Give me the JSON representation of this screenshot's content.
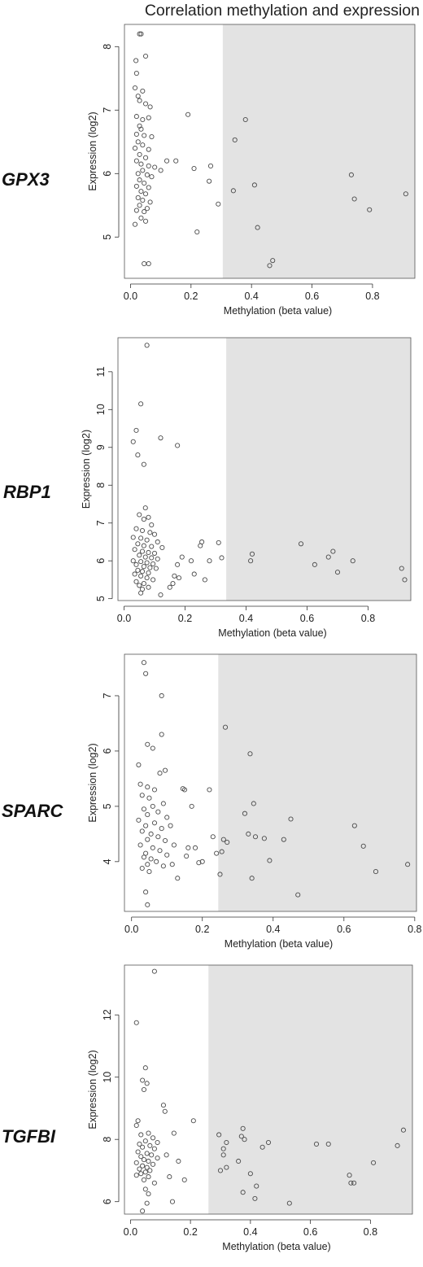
{
  "figure": {
    "title": "Correlation methylation and expression"
  },
  "chart_data": [
    {
      "type": "scatter",
      "gene": "GPX3",
      "xlabel": "Methylation (beta value)",
      "ylabel": "Expression (log2)",
      "xlim": [
        -0.02,
        0.94
      ],
      "ylim": [
        4.35,
        8.35
      ],
      "xticks": [
        0,
        0.2,
        0.4,
        0.6,
        0.8
      ],
      "xtick_labels": [
        "0.0",
        "0.2",
        "0.4",
        "0.6",
        "0.8"
      ],
      "yticks": [
        5,
        6,
        7,
        8
      ],
      "ytick_labels": [
        "5",
        "6",
        "7",
        "8"
      ],
      "shaded_from_x": 0.305,
      "points": [
        [
          0.03,
          8.2
        ],
        [
          0.035,
          8.2
        ],
        [
          0.018,
          7.78
        ],
        [
          0.05,
          7.85
        ],
        [
          0.02,
          7.58
        ],
        [
          0.015,
          7.35
        ],
        [
          0.025,
          7.22
        ],
        [
          0.04,
          7.3
        ],
        [
          0.03,
          7.15
        ],
        [
          0.05,
          7.1
        ],
        [
          0.065,
          7.05
        ],
        [
          0.02,
          6.9
        ],
        [
          0.04,
          6.85
        ],
        [
          0.06,
          6.88
        ],
        [
          0.03,
          6.75
        ],
        [
          0.035,
          6.7
        ],
        [
          0.02,
          6.62
        ],
        [
          0.045,
          6.6
        ],
        [
          0.07,
          6.58
        ],
        [
          0.025,
          6.5
        ],
        [
          0.04,
          6.45
        ],
        [
          0.015,
          6.4
        ],
        [
          0.06,
          6.38
        ],
        [
          0.03,
          6.3
        ],
        [
          0.05,
          6.25
        ],
        [
          0.02,
          6.2
        ],
        [
          0.035,
          6.15
        ],
        [
          0.06,
          6.12
        ],
        [
          0.08,
          6.1
        ],
        [
          0.04,
          6.05
        ],
        [
          0.025,
          6.0
        ],
        [
          0.055,
          5.98
        ],
        [
          0.07,
          5.95
        ],
        [
          0.03,
          5.9
        ],
        [
          0.045,
          5.85
        ],
        [
          0.02,
          5.8
        ],
        [
          0.06,
          5.78
        ],
        [
          0.035,
          5.72
        ],
        [
          0.05,
          5.68
        ],
        [
          0.025,
          5.62
        ],
        [
          0.04,
          5.58
        ],
        [
          0.065,
          5.55
        ],
        [
          0.03,
          5.5
        ],
        [
          0.055,
          5.45
        ],
        [
          0.02,
          5.42
        ],
        [
          0.045,
          5.4
        ],
        [
          0.035,
          5.3
        ],
        [
          0.05,
          5.25
        ],
        [
          0.015,
          5.2
        ],
        [
          0.045,
          4.58
        ],
        [
          0.06,
          4.58
        ],
        [
          0.1,
          6.05
        ],
        [
          0.12,
          6.2
        ],
        [
          0.15,
          6.2
        ],
        [
          0.19,
          6.93
        ],
        [
          0.21,
          6.08
        ],
        [
          0.22,
          5.08
        ],
        [
          0.26,
          5.88
        ],
        [
          0.265,
          6.12
        ],
        [
          0.29,
          5.52
        ],
        [
          0.34,
          5.73
        ],
        [
          0.345,
          6.53
        ],
        [
          0.38,
          6.85
        ],
        [
          0.41,
          5.82
        ],
        [
          0.42,
          5.15
        ],
        [
          0.46,
          4.55
        ],
        [
          0.47,
          4.63
        ],
        [
          0.73,
          5.98
        ],
        [
          0.74,
          5.6
        ],
        [
          0.79,
          5.43
        ],
        [
          0.91,
          5.68
        ]
      ]
    },
    {
      "type": "scatter",
      "gene": "RBP1",
      "xlabel": "Methylation (beta value)",
      "ylabel": "Expression (log2)",
      "xlim": [
        -0.02,
        0.94
      ],
      "ylim": [
        4.95,
        11.9
      ],
      "xticks": [
        0,
        0.2,
        0.4,
        0.6,
        0.8
      ],
      "xtick_labels": [
        "0.0",
        "0.2",
        "0.4",
        "0.6",
        "0.8"
      ],
      "yticks": [
        5,
        6,
        7,
        8,
        9,
        10,
        11
      ],
      "ytick_labels": [
        "5",
        "6",
        "7",
        "8",
        "9",
        "10",
        "11"
      ],
      "shaded_from_x": 0.335,
      "points": [
        [
          0.075,
          11.7
        ],
        [
          0.055,
          10.15
        ],
        [
          0.04,
          9.45
        ],
        [
          0.12,
          9.25
        ],
        [
          0.03,
          9.15
        ],
        [
          0.175,
          9.05
        ],
        [
          0.045,
          8.8
        ],
        [
          0.065,
          8.55
        ],
        [
          0.07,
          7.4
        ],
        [
          0.05,
          7.22
        ],
        [
          0.08,
          7.15
        ],
        [
          0.065,
          7.1
        ],
        [
          0.09,
          6.95
        ],
        [
          0.04,
          6.85
        ],
        [
          0.06,
          6.8
        ],
        [
          0.085,
          6.75
        ],
        [
          0.1,
          6.7
        ],
        [
          0.03,
          6.62
        ],
        [
          0.055,
          6.6
        ],
        [
          0.075,
          6.55
        ],
        [
          0.11,
          6.5
        ],
        [
          0.045,
          6.45
        ],
        [
          0.065,
          6.4
        ],
        [
          0.09,
          6.38
        ],
        [
          0.125,
          6.35
        ],
        [
          0.035,
          6.3
        ],
        [
          0.06,
          6.25
        ],
        [
          0.08,
          6.22
        ],
        [
          0.1,
          6.2
        ],
        [
          0.05,
          6.15
        ],
        [
          0.07,
          6.1
        ],
        [
          0.09,
          6.08
        ],
        [
          0.11,
          6.05
        ],
        [
          0.03,
          6.0
        ],
        [
          0.055,
          5.98
        ],
        [
          0.075,
          5.95
        ],
        [
          0.095,
          5.92
        ],
        [
          0.04,
          5.9
        ],
        [
          0.065,
          5.85
        ],
        [
          0.085,
          5.82
        ],
        [
          0.105,
          5.8
        ],
        [
          0.045,
          5.75
        ],
        [
          0.06,
          5.72
        ],
        [
          0.08,
          5.68
        ],
        [
          0.035,
          5.65
        ],
        [
          0.055,
          5.6
        ],
        [
          0.075,
          5.55
        ],
        [
          0.095,
          5.5
        ],
        [
          0.04,
          5.45
        ],
        [
          0.065,
          5.4
        ],
        [
          0.05,
          5.35
        ],
        [
          0.08,
          5.3
        ],
        [
          0.06,
          5.25
        ],
        [
          0.12,
          5.1
        ],
        [
          0.055,
          5.15
        ],
        [
          0.15,
          5.3
        ],
        [
          0.16,
          5.4
        ],
        [
          0.165,
          5.6
        ],
        [
          0.18,
          5.55
        ],
        [
          0.175,
          5.9
        ],
        [
          0.19,
          6.1
        ],
        [
          0.22,
          6.0
        ],
        [
          0.23,
          5.65
        ],
        [
          0.25,
          6.4
        ],
        [
          0.255,
          6.5
        ],
        [
          0.265,
          5.5
        ],
        [
          0.28,
          6.0
        ],
        [
          0.31,
          6.48
        ],
        [
          0.32,
          6.08
        ],
        [
          0.415,
          6.0
        ],
        [
          0.42,
          6.18
        ],
        [
          0.58,
          6.45
        ],
        [
          0.625,
          5.9
        ],
        [
          0.67,
          6.1
        ],
        [
          0.685,
          6.25
        ],
        [
          0.7,
          5.7
        ],
        [
          0.75,
          6.0
        ],
        [
          0.91,
          5.8
        ],
        [
          0.92,
          5.5
        ]
      ]
    },
    {
      "type": "scatter",
      "gene": "SPARC",
      "xlabel": "Methylation (beta value)",
      "ylabel": "Expression (log2)",
      "xlim": [
        -0.02,
        0.805
      ],
      "ylim": [
        3.1,
        7.75
      ],
      "xticks": [
        0,
        0.2,
        0.4,
        0.6,
        0.8
      ],
      "xtick_labels": [
        "0.0",
        "0.2",
        "0.4",
        "0.6",
        "0.8"
      ],
      "yticks": [
        4,
        5,
        6,
        7
      ],
      "ytick_labels": [
        "4",
        "5",
        "6",
        "7"
      ],
      "shaded_from_x": 0.245,
      "points": [
        [
          0.035,
          7.6
        ],
        [
          0.04,
          7.4
        ],
        [
          0.085,
          7.0
        ],
        [
          0.085,
          6.3
        ],
        [
          0.045,
          6.12
        ],
        [
          0.06,
          6.05
        ],
        [
          0.095,
          5.65
        ],
        [
          0.02,
          5.75
        ],
        [
          0.08,
          5.6
        ],
        [
          0.025,
          5.4
        ],
        [
          0.045,
          5.35
        ],
        [
          0.065,
          5.3
        ],
        [
          0.03,
          5.2
        ],
        [
          0.05,
          5.15
        ],
        [
          0.09,
          5.05
        ],
        [
          0.06,
          5.0
        ],
        [
          0.035,
          4.95
        ],
        [
          0.075,
          4.9
        ],
        [
          0.045,
          4.85
        ],
        [
          0.1,
          4.8
        ],
        [
          0.02,
          4.75
        ],
        [
          0.065,
          4.7
        ],
        [
          0.04,
          4.65
        ],
        [
          0.085,
          4.6
        ],
        [
          0.03,
          4.55
        ],
        [
          0.055,
          4.5
        ],
        [
          0.075,
          4.45
        ],
        [
          0.045,
          4.4
        ],
        [
          0.095,
          4.38
        ],
        [
          0.025,
          4.3
        ],
        [
          0.06,
          4.25
        ],
        [
          0.08,
          4.2
        ],
        [
          0.04,
          4.15
        ],
        [
          0.1,
          4.12
        ],
        [
          0.035,
          4.08
        ],
        [
          0.055,
          4.05
        ],
        [
          0.07,
          4.0
        ],
        [
          0.045,
          3.95
        ],
        [
          0.09,
          3.92
        ],
        [
          0.03,
          3.88
        ],
        [
          0.05,
          3.82
        ],
        [
          0.04,
          3.45
        ],
        [
          0.045,
          3.22
        ],
        [
          0.11,
          4.65
        ],
        [
          0.12,
          4.3
        ],
        [
          0.115,
          3.95
        ],
        [
          0.13,
          3.7
        ],
        [
          0.145,
          5.32
        ],
        [
          0.15,
          5.3
        ],
        [
          0.155,
          4.1
        ],
        [
          0.16,
          4.25
        ],
        [
          0.17,
          5.0
        ],
        [
          0.18,
          4.25
        ],
        [
          0.19,
          3.98
        ],
        [
          0.2,
          4.0
        ],
        [
          0.22,
          5.3
        ],
        [
          0.23,
          4.45
        ],
        [
          0.24,
          4.15
        ],
        [
          0.25,
          3.77
        ],
        [
          0.255,
          4.18
        ],
        [
          0.26,
          4.4
        ],
        [
          0.265,
          6.43
        ],
        [
          0.27,
          4.35
        ],
        [
          0.32,
          4.87
        ],
        [
          0.33,
          4.5
        ],
        [
          0.335,
          5.95
        ],
        [
          0.34,
          3.7
        ],
        [
          0.345,
          5.05
        ],
        [
          0.35,
          4.45
        ],
        [
          0.375,
          4.42
        ],
        [
          0.39,
          4.02
        ],
        [
          0.43,
          4.4
        ],
        [
          0.45,
          4.77
        ],
        [
          0.47,
          3.4
        ],
        [
          0.63,
          4.65
        ],
        [
          0.655,
          4.28
        ],
        [
          0.69,
          3.82
        ],
        [
          0.78,
          3.95
        ]
      ]
    },
    {
      "type": "scatter",
      "gene": "TGFBI",
      "xlabel": "Methylation (beta value)",
      "ylabel": "Expression (log2)",
      "xlim": [
        -0.02,
        0.94
      ],
      "ylim": [
        5.6,
        13.6
      ],
      "xticks": [
        0,
        0.2,
        0.4,
        0.6,
        0.8
      ],
      "xtick_labels": [
        "0.0",
        "0.2",
        "0.4",
        "0.6",
        "0.8"
      ],
      "yticks": [
        6,
        8,
        10,
        12
      ],
      "ytick_labels": [
        "6",
        "8",
        "10",
        "12"
      ],
      "shaded_from_x": 0.26,
      "points": [
        [
          0.08,
          13.4
        ],
        [
          0.02,
          11.75
        ],
        [
          0.05,
          10.3
        ],
        [
          0.04,
          9.9
        ],
        [
          0.055,
          9.8
        ],
        [
          0.045,
          9.6
        ],
        [
          0.025,
          8.6
        ],
        [
          0.02,
          8.45
        ],
        [
          0.06,
          8.2
        ],
        [
          0.035,
          8.15
        ],
        [
          0.075,
          8.05
        ],
        [
          0.05,
          7.95
        ],
        [
          0.09,
          7.9
        ],
        [
          0.03,
          7.85
        ],
        [
          0.065,
          7.8
        ],
        [
          0.04,
          7.75
        ],
        [
          0.08,
          7.7
        ],
        [
          0.025,
          7.6
        ],
        [
          0.055,
          7.55
        ],
        [
          0.07,
          7.5
        ],
        [
          0.035,
          7.45
        ],
        [
          0.09,
          7.4
        ],
        [
          0.045,
          7.35
        ],
        [
          0.06,
          7.3
        ],
        [
          0.02,
          7.25
        ],
        [
          0.075,
          7.2
        ],
        [
          0.04,
          7.15
        ],
        [
          0.055,
          7.1
        ],
        [
          0.03,
          7.05
        ],
        [
          0.065,
          7.0
        ],
        [
          0.05,
          6.95
        ],
        [
          0.035,
          6.9
        ],
        [
          0.02,
          6.85
        ],
        [
          0.06,
          6.8
        ],
        [
          0.045,
          6.7
        ],
        [
          0.08,
          6.6
        ],
        [
          0.05,
          6.4
        ],
        [
          0.06,
          6.25
        ],
        [
          0.04,
          5.7
        ],
        [
          0.055,
          5.95
        ],
        [
          0.11,
          9.1
        ],
        [
          0.115,
          8.9
        ],
        [
          0.12,
          7.5
        ],
        [
          0.13,
          6.8
        ],
        [
          0.14,
          6.0
        ],
        [
          0.145,
          8.2
        ],
        [
          0.16,
          7.3
        ],
        [
          0.18,
          6.7
        ],
        [
          0.21,
          8.6
        ],
        [
          0.295,
          8.15
        ],
        [
          0.3,
          7.0
        ],
        [
          0.31,
          7.7
        ],
        [
          0.31,
          7.5
        ],
        [
          0.32,
          7.9
        ],
        [
          0.32,
          7.1
        ],
        [
          0.36,
          7.3
        ],
        [
          0.37,
          8.1
        ],
        [
          0.375,
          8.35
        ],
        [
          0.375,
          6.3
        ],
        [
          0.38,
          8.0
        ],
        [
          0.4,
          6.9
        ],
        [
          0.415,
          6.1
        ],
        [
          0.42,
          6.5
        ],
        [
          0.44,
          7.75
        ],
        [
          0.46,
          7.9
        ],
        [
          0.53,
          5.95
        ],
        [
          0.62,
          7.85
        ],
        [
          0.66,
          7.85
        ],
        [
          0.73,
          6.85
        ],
        [
          0.735,
          6.6
        ],
        [
          0.745,
          6.6
        ],
        [
          0.81,
          7.25
        ],
        [
          0.89,
          7.8
        ],
        [
          0.91,
          8.3
        ]
      ]
    }
  ]
}
